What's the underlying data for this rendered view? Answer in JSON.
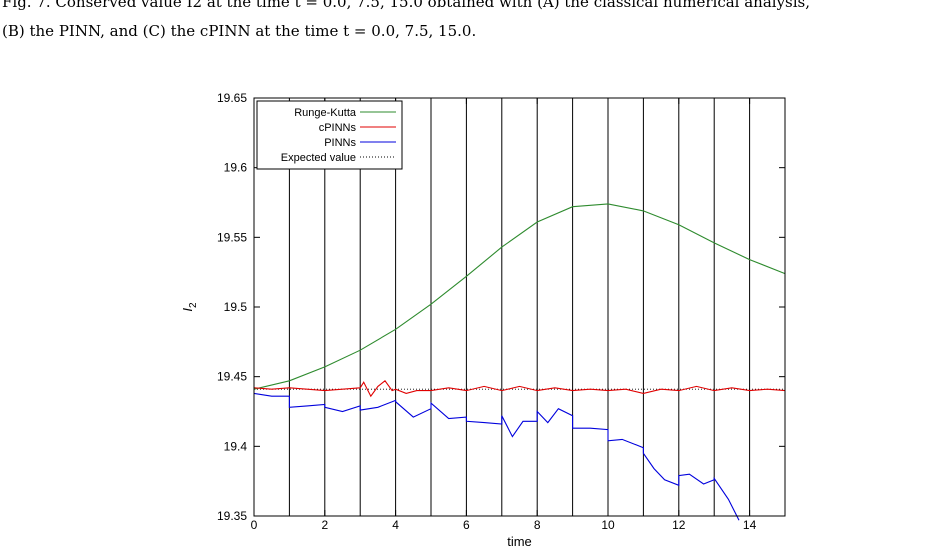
{
  "caption": {
    "line1": "Fig. 7. Conserved value I2 at the time t = 0.0, 7.5, 15.0 obtained with (A) the classical numerical analysis,",
    "line2": "(B) the PINN, and (C) the cPINN at the time t = 0.0, 7.5, 15.0."
  },
  "colors": {
    "runge_kutta": "#2e8b2e",
    "cpinns": "#e00000",
    "pinns": "#0000dd",
    "expected": "#000000"
  },
  "chart_data": {
    "type": "line",
    "title": "",
    "xlabel": "time",
    "ylabel": "I2",
    "xlim": [
      0,
      15
    ],
    "ylim": [
      19.35,
      19.65
    ],
    "x_ticks": [
      0,
      2,
      4,
      6,
      8,
      10,
      12,
      14
    ],
    "x_tick_labels": [
      "0",
      "2",
      "4",
      "6",
      "8",
      "10",
      "12",
      "14"
    ],
    "y_ticks": [
      19.35,
      19.4,
      19.45,
      19.5,
      19.55,
      19.6,
      19.65
    ],
    "y_tick_labels": [
      "19.35",
      "19.4",
      "19.45",
      "19.5",
      "19.55",
      "19.6",
      "19.65"
    ],
    "subdomain_boundaries": [
      1,
      2,
      3,
      4,
      5,
      6,
      7,
      8,
      9,
      10,
      11,
      12,
      13,
      14
    ],
    "legend_position": "top-left",
    "series": [
      {
        "name": "Runge-Kutta",
        "style": "solid",
        "x": [
          0,
          1,
          2,
          3,
          4,
          5,
          6,
          7,
          8,
          9,
          10,
          11,
          12,
          13,
          14,
          15
        ],
        "y": [
          19.441,
          19.447,
          19.457,
          19.469,
          19.484,
          19.502,
          19.522,
          19.543,
          19.561,
          19.572,
          19.574,
          19.569,
          19.559,
          19.546,
          19.534,
          19.524
        ]
      },
      {
        "name": "cPINNs",
        "style": "solid",
        "x": [
          0,
          0.5,
          1,
          1.5,
          2,
          2.5,
          3,
          3.1,
          3.3,
          3.5,
          3.7,
          3.9,
          4,
          4.3,
          4.6,
          5,
          5.5,
          6,
          6.5,
          7,
          7.5,
          8,
          8.5,
          9,
          9.5,
          10,
          10.5,
          11,
          11.5,
          12,
          12.5,
          13,
          13.5,
          14,
          14.5,
          15
        ],
        "y": [
          19.442,
          19.441,
          19.442,
          19.441,
          19.44,
          19.441,
          19.442,
          19.446,
          19.436,
          19.443,
          19.447,
          19.44,
          19.441,
          19.438,
          19.44,
          19.44,
          19.442,
          19.44,
          19.443,
          19.44,
          19.443,
          19.44,
          19.442,
          19.44,
          19.441,
          19.44,
          19.441,
          19.438,
          19.441,
          19.44,
          19.443,
          19.44,
          19.442,
          19.44,
          19.441,
          19.44
        ]
      },
      {
        "name": "PINNs",
        "style": "solid",
        "x": [
          0,
          0.5,
          1,
          1,
          1.5,
          2,
          2,
          2.5,
          3,
          3,
          3.5,
          4,
          4,
          4.5,
          5,
          5,
          5.5,
          6,
          6,
          6.5,
          7,
          7,
          7.3,
          7.6,
          8,
          8,
          8.3,
          8.6,
          9,
          9,
          9.5,
          10,
          10,
          10.4,
          10.8,
          11,
          11,
          11.3,
          11.6,
          12,
          12,
          12.3,
          12.7,
          13,
          13,
          13.4,
          13.7
        ],
        "y": [
          19.438,
          19.436,
          19.436,
          19.428,
          19.429,
          19.43,
          19.428,
          19.425,
          19.429,
          19.426,
          19.428,
          19.433,
          19.432,
          19.421,
          19.427,
          19.431,
          19.42,
          19.421,
          19.418,
          19.417,
          19.416,
          19.422,
          19.407,
          19.418,
          19.418,
          19.425,
          19.417,
          19.427,
          19.422,
          19.413,
          19.413,
          19.412,
          19.404,
          19.405,
          19.401,
          19.399,
          19.395,
          19.384,
          19.376,
          19.372,
          19.379,
          19.38,
          19.373,
          19.376,
          19.377,
          19.362,
          19.347
        ]
      },
      {
        "name": "Expected value",
        "style": "dotted",
        "x": [
          0,
          15
        ],
        "y": [
          19.441,
          19.441
        ]
      }
    ]
  }
}
